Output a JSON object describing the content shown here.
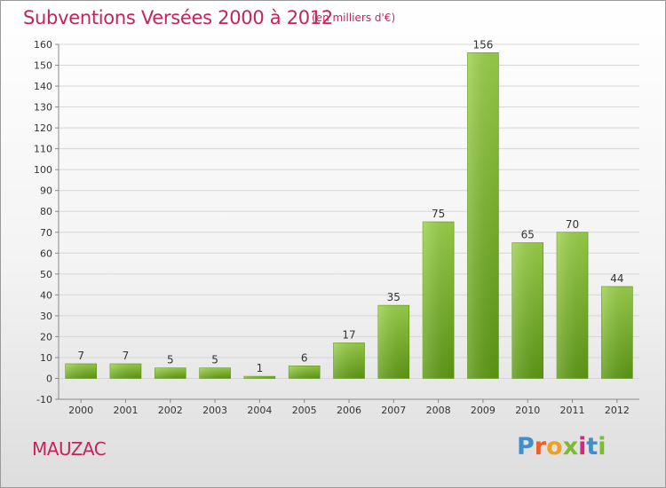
{
  "header": {
    "title": "Subventions Versées 2000 à 2012",
    "subtitle": "(en milliers d'€)"
  },
  "footer": {
    "place": "MAUZAC",
    "logo": "Proxiti"
  },
  "colors": {
    "title": "#c4245a",
    "bar_light": "#9bd14a",
    "bar_dark": "#5e9a14",
    "grid": "#d4d4d4"
  },
  "chart_data": {
    "type": "bar",
    "title": "Subventions Versées 2000 à 2012",
    "subtitle": "(en milliers d'€)",
    "categories": [
      "2000",
      "2001",
      "2002",
      "2003",
      "2004",
      "2005",
      "2006",
      "2007",
      "2008",
      "2009",
      "2010",
      "2011",
      "2012"
    ],
    "values": [
      7,
      7,
      5,
      5,
      1,
      6,
      17,
      35,
      75,
      156,
      65,
      70,
      44
    ],
    "data_labels": [
      "7",
      "7",
      "5",
      "5",
      "1",
      "6",
      "17",
      "35",
      "75",
      "156",
      "65",
      "70",
      "44"
    ],
    "ylim": [
      -10,
      160
    ],
    "yticks": [
      -10,
      0,
      10,
      20,
      30,
      40,
      50,
      60,
      70,
      80,
      90,
      100,
      110,
      120,
      130,
      140,
      150,
      160
    ],
    "ytick_labels": [
      "-10",
      "0",
      "10",
      "20",
      "30",
      "40",
      "50",
      "60",
      "70",
      "80",
      "90",
      "100",
      "110",
      "120",
      "130",
      "140",
      "150",
      "160"
    ],
    "grid": true,
    "xlabel": "",
    "ylabel": ""
  }
}
